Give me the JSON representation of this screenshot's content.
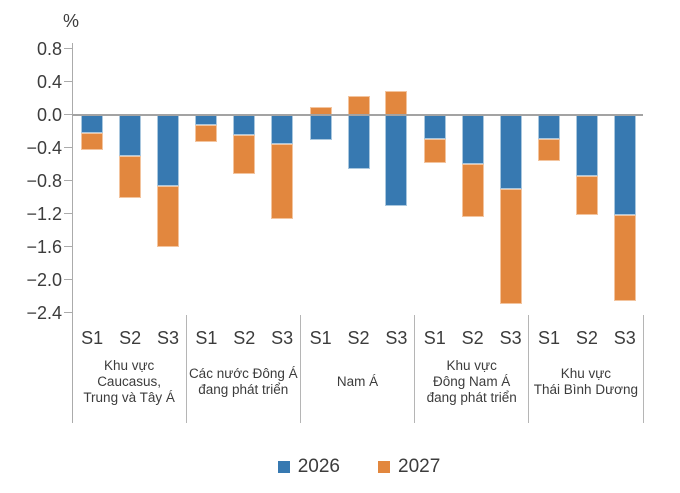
{
  "chart_data": {
    "type": "bar",
    "stacked": true,
    "title": "",
    "unit_label": "%",
    "ylim": [
      -2.4,
      0.8
    ],
    "grid": false,
    "zero_line": true,
    "legend_position": "bottom",
    "y_ticks": [
      {
        "label": "0.8",
        "value": 0.8
      },
      {
        "label": "0.4",
        "value": 0.4
      },
      {
        "label": "0.0",
        "value": 0.0
      },
      {
        "label": "−0.4",
        "value": -0.4
      },
      {
        "label": "−0.8",
        "value": -0.8
      },
      {
        "label": "−1.2",
        "value": -1.2
      },
      {
        "label": "−1.6",
        "value": -1.6
      },
      {
        "label": "−2.0",
        "value": -2.0
      },
      {
        "label": "−2.4",
        "value": -2.4
      }
    ],
    "series": [
      {
        "name": "2026",
        "color": "#3779B1",
        "edge_color": "#a9c7de"
      },
      {
        "name": "2027",
        "color": "#E2873E",
        "edge_color": "#f3c49e"
      }
    ],
    "groups": [
      {
        "label_lines": [
          "Khu vực",
          "Caucasus,",
          "Trung và Tây Á"
        ],
        "scenarios": [
          {
            "label": "S1",
            "values": [
              -0.22,
              -0.21
            ]
          },
          {
            "label": "S2",
            "values": [
              -0.5,
              -0.51
            ]
          },
          {
            "label": "S3",
            "values": [
              -0.86,
              -0.74
            ]
          }
        ]
      },
      {
        "label_lines": [
          "Các nước Đông Á",
          "đang phát triển"
        ],
        "scenarios": [
          {
            "label": "S1",
            "values": [
              -0.12,
              -0.21
            ]
          },
          {
            "label": "S2",
            "values": [
              -0.25,
              -0.47
            ]
          },
          {
            "label": "S3",
            "values": [
              -0.35,
              -0.91
            ]
          }
        ]
      },
      {
        "label_lines": [
          "Nam Á"
        ],
        "scenarios": [
          {
            "label": "S1",
            "values": [
              -0.31,
              0.09
            ]
          },
          {
            "label": "S2",
            "values": [
              -0.66,
              0.23
            ]
          },
          {
            "label": "S3",
            "values": [
              -1.11,
              0.29
            ]
          }
        ]
      },
      {
        "label_lines": [
          "Khu vực",
          "Đông Nam Á",
          "đang phát triển"
        ],
        "scenarios": [
          {
            "label": "S1",
            "values": [
              -0.3,
              -0.29
            ]
          },
          {
            "label": "S2",
            "values": [
              -0.6,
              -0.64
            ]
          },
          {
            "label": "S3",
            "values": [
              -0.9,
              -1.39
            ]
          }
        ]
      },
      {
        "label_lines": [
          "Khu vực",
          "Thái Bình Dương"
        ],
        "scenarios": [
          {
            "label": "S1",
            "values": [
              -0.3,
              -0.26
            ]
          },
          {
            "label": "S2",
            "values": [
              -0.74,
              -0.48
            ]
          },
          {
            "label": "S3",
            "values": [
              -1.21,
              -1.05
            ]
          }
        ]
      }
    ]
  }
}
